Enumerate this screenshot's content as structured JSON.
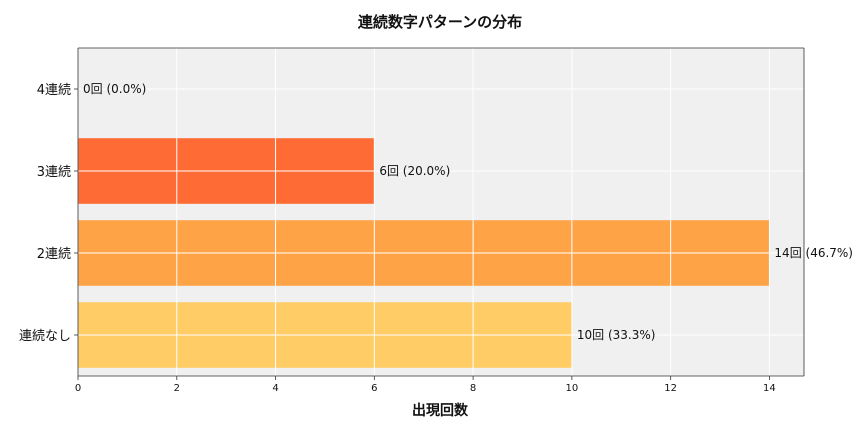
{
  "chart_data": {
    "type": "bar",
    "orientation": "horizontal",
    "title": "連続数字パターンの分布",
    "xlabel": "出現回数",
    "ylabel": "",
    "categories": [
      "4連続",
      "3連続",
      "2連続",
      "連続なし"
    ],
    "values": [
      0,
      6,
      14,
      10
    ],
    "data_labels": [
      "0回 (0.0%)",
      "6回 (20.0%)",
      "14回 (46.7%)",
      "10回 (33.3%)"
    ],
    "bar_colors": [
      "#FF4500",
      "#FF6B35",
      "#FFA347",
      "#FFCC66"
    ],
    "xlim": [
      0,
      14.7
    ],
    "xticks": [
      0,
      2,
      4,
      6,
      8,
      10,
      12,
      14
    ],
    "xtick_labels": [
      "0",
      "2",
      "4",
      "6",
      "8",
      "10",
      "12",
      "14"
    ],
    "grid": true,
    "plot_background": "#F0F0F0"
  }
}
